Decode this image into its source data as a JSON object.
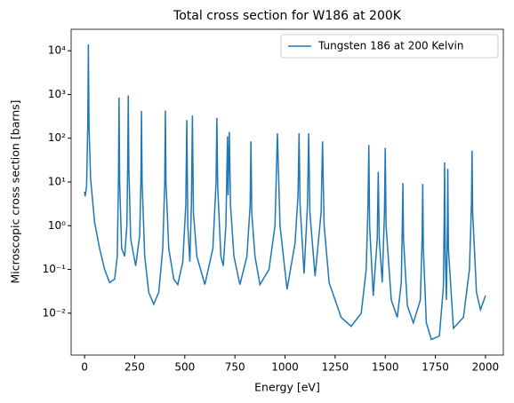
{
  "chart_data": {
    "type": "line",
    "title": "Total cross section for W186 at 200K",
    "x_label": "Energy [eV]",
    "y_label": "Microscopic cross section [barns]",
    "y_scale": "log",
    "legend": "upper right",
    "xlim": [
      -67,
      2089
    ],
    "ylim": [
      0.0011,
      31000
    ],
    "xticks": [
      0,
      250,
      500,
      750,
      1000,
      1250,
      1500,
      1750,
      2000
    ],
    "yticks": [
      {
        "value": 0.01,
        "label": "10⁻²"
      },
      {
        "value": 0.1,
        "label": "10⁻¹"
      },
      {
        "value": 1,
        "label": "10⁰"
      },
      {
        "value": 10,
        "label": "10¹"
      },
      {
        "value": 100,
        "label": "10²"
      },
      {
        "value": 1000,
        "label": "10³"
      },
      {
        "value": 10000,
        "label": "10⁴"
      }
    ],
    "x": [
      0,
      3,
      10,
      16,
      19,
      22,
      30,
      50,
      75,
      100,
      125,
      150,
      163,
      169,
      172,
      175,
      185,
      200,
      211,
      215,
      218,
      221,
      230,
      255,
      275,
      281,
      284,
      287,
      300,
      320,
      345,
      370,
      390,
      400,
      403,
      406,
      420,
      445,
      465,
      490,
      505,
      510,
      515,
      525,
      533,
      538,
      543,
      560,
      600,
      640,
      656,
      660,
      664,
      680,
      692,
      705,
      713,
      716,
      722,
      728,
      745,
      775,
      810,
      826,
      830,
      834,
      850,
      875,
      920,
      950,
      962,
      975,
      1010,
      1050,
      1065,
      1070,
      1075,
      1095,
      1112,
      1118,
      1124,
      1150,
      1180,
      1187,
      1195,
      1220,
      1280,
      1330,
      1380,
      1405,
      1414,
      1418,
      1422,
      1440,
      1460,
      1465,
      1470,
      1485,
      1496,
      1500,
      1504,
      1530,
      1560,
      1580,
      1585,
      1588,
      1591,
      1610,
      1640,
      1675,
      1684,
      1687,
      1690,
      1705,
      1730,
      1770,
      1790,
      1794,
      1796,
      1799,
      1805,
      1810,
      1812,
      1815,
      1840,
      1890,
      1920,
      1930,
      1933,
      1936,
      1955,
      1975,
      2000
    ],
    "series": [
      {
        "name": "Tungsten 186 at 200 Kelvin",
        "color": "#1f77b4",
        "values": [
          6,
          4.7,
          8,
          200,
          14000,
          200,
          12,
          1.2,
          0.3,
          0.1,
          0.05,
          0.06,
          0.2,
          10,
          850,
          10,
          0.3,
          0.2,
          1,
          20,
          950,
          20,
          0.5,
          0.12,
          0.6,
          10,
          420,
          10,
          0.2,
          0.03,
          0.016,
          0.03,
          0.3,
          10,
          430,
          10,
          0.3,
          0.06,
          0.045,
          0.15,
          3,
          260,
          1,
          0.15,
          3,
          330,
          2,
          0.2,
          0.045,
          0.3,
          10,
          290,
          8,
          0.2,
          0.12,
          1,
          110,
          5,
          140,
          3,
          0.2,
          0.045,
          0.2,
          3,
          85,
          2,
          0.2,
          0.045,
          0.1,
          1,
          130,
          1,
          0.035,
          0.4,
          5,
          130,
          3,
          0.08,
          3,
          130,
          2,
          0.07,
          2,
          85,
          1,
          0.05,
          0.008,
          0.005,
          0.01,
          0.1,
          3,
          70,
          1,
          0.025,
          0.5,
          17,
          0.5,
          0.05,
          2,
          60,
          1,
          0.02,
          0.008,
          0.05,
          1,
          9.5,
          0.5,
          0.015,
          0.006,
          0.02,
          0.5,
          9,
          0.3,
          0.006,
          0.0025,
          0.003,
          0.04,
          1.5,
          28,
          0.3,
          0.02,
          1,
          20,
          0.3,
          0.0045,
          0.008,
          0.1,
          3,
          52,
          2,
          0.03,
          0.012,
          0.025
        ]
      }
    ]
  }
}
